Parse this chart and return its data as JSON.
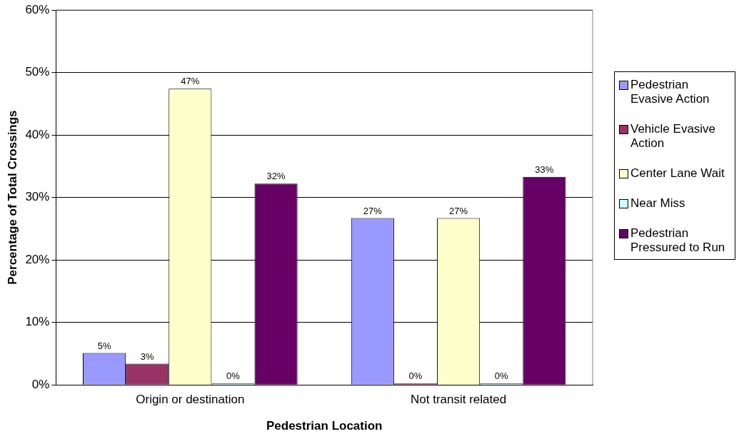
{
  "chart_data": {
    "type": "bar",
    "xlabel": "Pedestrian Location",
    "ylabel": "Percentage of Total Crossings",
    "categories": [
      "Origin or destination",
      "Not transit related"
    ],
    "series": [
      {
        "name": "Pedestrian Evasive Action",
        "color": "#9999ff",
        "values": [
          5.1,
          26.7
        ],
        "value_labels": [
          "5%",
          "27%"
        ]
      },
      {
        "name": "Vehicle Evasive Action",
        "color": "#993366",
        "values": [
          3.4,
          0
        ],
        "value_labels": [
          "3%",
          "0%"
        ]
      },
      {
        "name": "Center Lane Wait",
        "color": "#ffffcc",
        "values": [
          47.4,
          26.7
        ],
        "value_labels": [
          "47%",
          "27%"
        ]
      },
      {
        "name": "Near Miss",
        "color": "#ccffff",
        "values": [
          0,
          0
        ],
        "value_labels": [
          "0%",
          "0%"
        ]
      },
      {
        "name": "Pedestrian Pressured to Run",
        "color": "#660066",
        "values": [
          32.2,
          33.3
        ],
        "value_labels": [
          "32%",
          "33%"
        ]
      }
    ],
    "ylim": [
      0,
      60
    ],
    "yticks": [
      {
        "value": 0,
        "label": "0%"
      },
      {
        "value": 10,
        "label": "10%"
      },
      {
        "value": 20,
        "label": "20%"
      },
      {
        "value": 30,
        "label": "30%"
      },
      {
        "value": 40,
        "label": "40%"
      },
      {
        "value": 50,
        "label": "50%"
      },
      {
        "value": 60,
        "label": "60%"
      }
    ],
    "grid": "y",
    "legend": "right"
  }
}
